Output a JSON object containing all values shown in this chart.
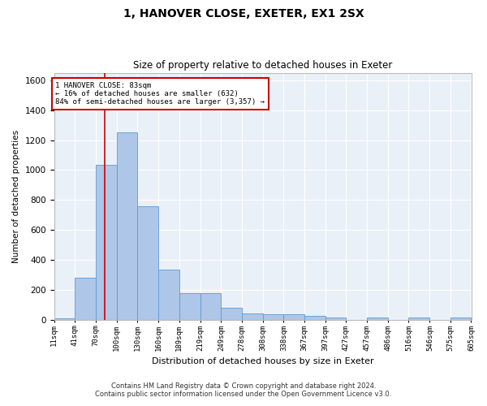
{
  "title": "1, HANOVER CLOSE, EXETER, EX1 2SX",
  "subtitle": "Size of property relative to detached houses in Exeter",
  "xlabel": "Distribution of detached houses by size in Exeter",
  "ylabel": "Number of detached properties",
  "footer_line1": "Contains HM Land Registry data © Crown copyright and database right 2024.",
  "footer_line2": "Contains public sector information licensed under the Open Government Licence v3.0.",
  "bar_color": "#aec6e8",
  "bar_edge_color": "#5b9bd5",
  "bg_color": "#eaf0f8",
  "grid_color": "#ffffff",
  "fig_bg_color": "#ffffff",
  "annotation_box_color": "#cc0000",
  "annotation_line_color": "#cc0000",
  "ylim": [
    0,
    1650
  ],
  "yticks": [
    0,
    200,
    400,
    600,
    800,
    1000,
    1200,
    1400,
    1600
  ],
  "bin_edges": [
    11,
    41,
    70,
    100,
    130,
    160,
    189,
    219,
    249,
    278,
    308,
    338,
    367,
    397,
    427,
    457,
    486,
    516,
    546,
    575,
    605
  ],
  "bar_heights": [
    10,
    280,
    1035,
    1250,
    760,
    335,
    180,
    180,
    80,
    43,
    38,
    35,
    25,
    13,
    0,
    13,
    0,
    13,
    0,
    13
  ],
  "property_size": 83,
  "annotation_text_line1": "1 HANOVER CLOSE: 83sqm",
  "annotation_text_line2": "← 16% of detached houses are smaller (632)",
  "annotation_text_line3": "84% of semi-detached houses are larger (3,357) →",
  "tick_labels": [
    "11sqm",
    "41sqm",
    "70sqm",
    "100sqm",
    "130sqm",
    "160sqm",
    "189sqm",
    "219sqm",
    "249sqm",
    "278sqm",
    "308sqm",
    "338sqm",
    "367sqm",
    "397sqm",
    "427sqm",
    "457sqm",
    "486sqm",
    "516sqm",
    "546sqm",
    "575sqm",
    "605sqm"
  ]
}
